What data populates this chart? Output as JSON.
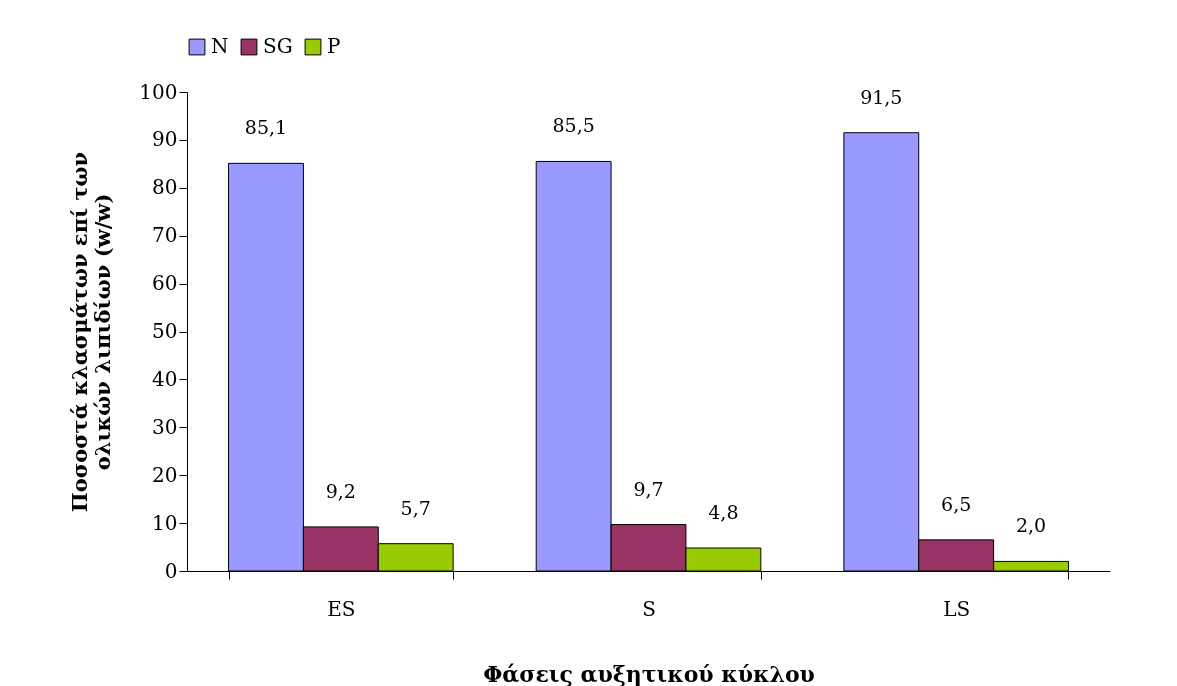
{
  "chart_data": {
    "type": "bar",
    "xlabel": "Φάσεις αυξητικού κύκλου",
    "ylabel": "Ποσοστά κλασμάτων επί των ολικών λιπιδίων (w/w)",
    "categories": [
      "ES",
      "S",
      "LS"
    ],
    "series": [
      {
        "name": "N",
        "color": "#9999ff",
        "values": [
          85.1,
          85.5,
          91.5
        ],
        "value_labels": [
          "85,1",
          "85,5",
          "91,5"
        ]
      },
      {
        "name": "SG",
        "color": "#993366",
        "values": [
          9.2,
          9.7,
          6.5
        ],
        "value_labels": [
          "9,2",
          "9,7",
          "6,5"
        ]
      },
      {
        "name": "P",
        "color": "#99cc00",
        "values": [
          5.7,
          4.8,
          2.0
        ],
        "value_labels": [
          "5,7",
          "4,8",
          "2,0"
        ]
      }
    ],
    "ylim": [
      0,
      100
    ],
    "yticks": [
      0,
      10,
      20,
      30,
      40,
      50,
      60,
      70,
      80,
      90,
      100
    ],
    "grid": false,
    "legend": "top"
  }
}
